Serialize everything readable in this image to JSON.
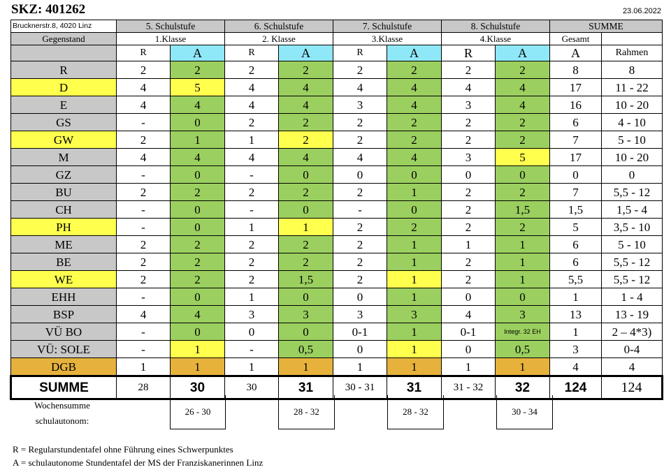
{
  "header": {
    "skz": "SKZ: 401262",
    "address": "Brucknerstr.8, 4020 Linz",
    "date": "23.06.2022"
  },
  "table": {
    "subject_header": "Gegenstand",
    "stages": [
      {
        "title": "5. Schulstufe",
        "klasse": "1.Klasse"
      },
      {
        "title": "6. Schulstufe",
        "klasse": "2. Klasse"
      },
      {
        "title": "7. Schulstufe",
        "klasse": "3.Klasse"
      },
      {
        "title": "8. Schulstufe",
        "klasse": "4.Klasse"
      }
    ],
    "summe_header": "SUMME",
    "gesamt_label": "Gesamt",
    "col_r": "R",
    "col_a": "A",
    "rahmen_label": "Rahmen",
    "rows": [
      {
        "subject": "R",
        "color": "gray",
        "v": [
          "2",
          "2",
          "2",
          "2",
          "2",
          "2",
          "2",
          "2",
          "8",
          "8"
        ],
        "c": [
          "white",
          "green",
          "white",
          "green",
          "white",
          "green",
          "white",
          "green",
          "white",
          "white"
        ]
      },
      {
        "subject": "D",
        "color": "yellow",
        "v": [
          "4",
          "5",
          "4",
          "4",
          "4",
          "4",
          "4",
          "4",
          "17",
          "11 - 22"
        ],
        "c": [
          "white",
          "yellow",
          "white",
          "green",
          "white",
          "green",
          "white",
          "green",
          "white",
          "white"
        ]
      },
      {
        "subject": "E",
        "color": "gray",
        "v": [
          "4",
          "4",
          "4",
          "4",
          "3",
          "4",
          "3",
          "4",
          "16",
          "10 - 20"
        ],
        "c": [
          "white",
          "green",
          "white",
          "green",
          "white",
          "green",
          "white",
          "green",
          "white",
          "white"
        ]
      },
      {
        "subject": "GS",
        "color": "gray",
        "v": [
          "-",
          "0",
          "2",
          "2",
          "2",
          "2",
          "2",
          "2",
          "6",
          "4 - 10"
        ],
        "c": [
          "white",
          "green",
          "white",
          "green",
          "white",
          "green",
          "white",
          "green",
          "white",
          "white"
        ]
      },
      {
        "subject": "GW",
        "color": "yellow",
        "v": [
          "2",
          "1",
          "1",
          "2",
          "2",
          "2",
          "2",
          "2",
          "7",
          "5 - 10"
        ],
        "c": [
          "white",
          "green",
          "white",
          "yellow",
          "white",
          "green",
          "white",
          "green",
          "white",
          "white"
        ]
      },
      {
        "subject": "M",
        "color": "gray",
        "v": [
          "4",
          "4",
          "4",
          "4",
          "4",
          "4",
          "3",
          "5",
          "17",
          "10 - 20"
        ],
        "c": [
          "white",
          "green",
          "white",
          "green",
          "white",
          "green",
          "white",
          "yellow",
          "white",
          "white"
        ]
      },
      {
        "subject": "GZ",
        "color": "gray",
        "v": [
          "-",
          "0",
          "-",
          "0",
          "0",
          "0",
          "0",
          "0",
          "0",
          "0"
        ],
        "c": [
          "white",
          "green",
          "white",
          "green",
          "white",
          "green",
          "white",
          "green",
          "white",
          "white"
        ]
      },
      {
        "subject": "BU",
        "color": "gray",
        "v": [
          "2",
          "2",
          "2",
          "2",
          "2",
          "1",
          "2",
          "2",
          "7",
          "5,5 - 12"
        ],
        "c": [
          "white",
          "green",
          "white",
          "green",
          "white",
          "green",
          "white",
          "green",
          "white",
          "white"
        ]
      },
      {
        "subject": "CH",
        "color": "gray",
        "v": [
          "-",
          "0",
          "-",
          "0",
          "-",
          "0",
          "2",
          "1,5",
          "1,5",
          "1,5 - 4"
        ],
        "c": [
          "white",
          "green",
          "white",
          "green",
          "white",
          "green",
          "white",
          "green",
          "white",
          "white"
        ]
      },
      {
        "subject": "PH",
        "color": "yellow",
        "v": [
          "-",
          "0",
          "1",
          "1",
          "2",
          "2",
          "2",
          "2",
          "5",
          "3,5 - 10"
        ],
        "c": [
          "white",
          "green",
          "white",
          "yellow",
          "white",
          "green",
          "white",
          "green",
          "white",
          "white"
        ]
      },
      {
        "subject": "ME",
        "color": "gray",
        "v": [
          "2",
          "2",
          "2",
          "2",
          "2",
          "1",
          "1",
          "1",
          "6",
          "5 - 10"
        ],
        "c": [
          "white",
          "green",
          "white",
          "green",
          "white",
          "green",
          "white",
          "green",
          "white",
          "white"
        ]
      },
      {
        "subject": "BE",
        "color": "gray",
        "v": [
          "2",
          "2",
          "2",
          "2",
          "2",
          "1",
          "2",
          "1",
          "6",
          "5,5 - 12"
        ],
        "c": [
          "white",
          "green",
          "white",
          "green",
          "white",
          "green",
          "white",
          "green",
          "white",
          "white"
        ]
      },
      {
        "subject": "WE",
        "color": "yellow",
        "v": [
          "2",
          "2",
          "2",
          "1,5",
          "2",
          "1",
          "2",
          "1",
          "5,5",
          "5,5 - 12"
        ],
        "c": [
          "white",
          "green",
          "white",
          "green",
          "white",
          "yellow",
          "white",
          "green",
          "white",
          "white"
        ]
      },
      {
        "subject": "EHH",
        "color": "gray",
        "v": [
          "-",
          "0",
          "1",
          "0",
          "0",
          "1",
          "0",
          "0",
          "1",
          "1 - 4"
        ],
        "c": [
          "white",
          "green",
          "white",
          "green",
          "white",
          "green",
          "white",
          "green",
          "white",
          "white"
        ]
      },
      {
        "subject": "BSP",
        "color": "gray",
        "v": [
          "4",
          "4",
          "3",
          "3",
          "3",
          "3",
          "4",
          "3",
          "13",
          "13 - 19"
        ],
        "c": [
          "white",
          "green",
          "white",
          "green",
          "white",
          "green",
          "white",
          "green",
          "white",
          "white"
        ]
      },
      {
        "subject": "VÜ BO",
        "color": "gray",
        "v": [
          "-",
          "0",
          "0",
          "0",
          "0-1",
          "1",
          "0-1",
          "Integr. 32 EH",
          "1",
          "2 – 4*3)"
        ],
        "c": [
          "white",
          "green",
          "white",
          "green",
          "white",
          "green",
          "white",
          "green",
          "white",
          "white"
        ]
      },
      {
        "subject": "VÜ: SOLE",
        "color": "gray",
        "v": [
          "-",
          "1",
          "-",
          "0,5",
          "0",
          "1",
          "0",
          "0,5",
          "3",
          "0-4"
        ],
        "c": [
          "white",
          "yellow",
          "white",
          "green",
          "white",
          "yellow",
          "white",
          "green",
          "white",
          "white"
        ]
      },
      {
        "subject": "DGB",
        "color": "orange",
        "v": [
          "1",
          "1",
          "1",
          "1",
          "1",
          "1",
          "1",
          "1",
          "4",
          "4"
        ],
        "c": [
          "white",
          "orange",
          "white",
          "orange",
          "white",
          "orange",
          "white",
          "orange",
          "white",
          "white"
        ]
      }
    ],
    "summe_row": {
      "label": "SUMME",
      "v": [
        "28",
        "30",
        "30",
        "31",
        "30 - 31",
        "31",
        "31 - 32",
        "32",
        "124",
        "124"
      ]
    }
  },
  "weekly": {
    "label_line1": "Wochensumme",
    "label_line2": "schulautonom:",
    "values": [
      "26 - 30",
      "28 - 32",
      "28 - 32",
      "30 - 34"
    ]
  },
  "legend": {
    "r_line": "R = Regularstundentafel ohne Führung eines Schwerpunktes",
    "a_line": "A = schulautonome Stundentafel der MS der Franziskanerinnen Linz"
  }
}
